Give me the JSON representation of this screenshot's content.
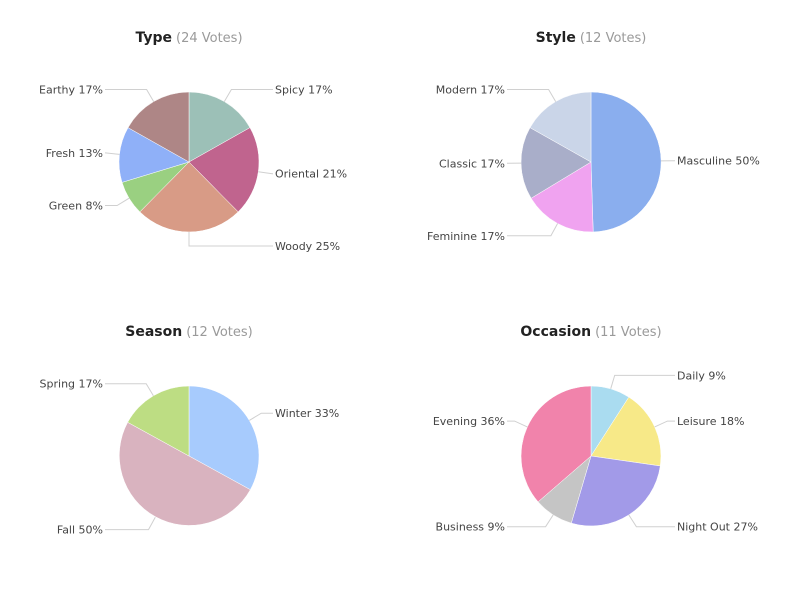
{
  "chart_data": [
    {
      "type": "pie",
      "title": "Type",
      "subtitle": "(24 Votes)",
      "slices": [
        {
          "label": "Spicy 17%",
          "value": 17,
          "color": "#9cc0b7"
        },
        {
          "label": "Oriental 21%",
          "value": 21,
          "color": "#c0648e"
        },
        {
          "label": "Woody 25%",
          "value": 25,
          "color": "#d89b86"
        },
        {
          "label": "Green 8%",
          "value": 8,
          "color": "#9ad081"
        },
        {
          "label": "Fresh 13%",
          "value": 13,
          "color": "#8fb0f8"
        },
        {
          "label": "Earthy 17%",
          "value": 17,
          "color": "#ae8686"
        }
      ]
    },
    {
      "type": "pie",
      "title": "Style",
      "subtitle": "(12 Votes)",
      "slices": [
        {
          "label": "Masculine 50%",
          "value": 50,
          "color": "#8aaeee"
        },
        {
          "label": "Feminine 17%",
          "value": 17,
          "color": "#f0a3f0"
        },
        {
          "label": "Classic 17%",
          "value": 17,
          "color": "#a9aec9"
        },
        {
          "label": "Modern 17%",
          "value": 17,
          "color": "#cad5e8"
        }
      ]
    },
    {
      "type": "pie",
      "title": "Season",
      "subtitle": "(12 Votes)",
      "slices": [
        {
          "label": "Winter 33%",
          "value": 33,
          "color": "#a7cbfd"
        },
        {
          "label": "Fall 50%",
          "value": 50,
          "color": "#d9b3bf"
        },
        {
          "label": "Spring 17%",
          "value": 17,
          "color": "#bddd83"
        }
      ]
    },
    {
      "type": "pie",
      "title": "Occasion",
      "subtitle": "(11 Votes)",
      "slices": [
        {
          "label": "Daily 9%",
          "value": 9,
          "color": "#aadcf0"
        },
        {
          "label": "Leisure 18%",
          "value": 18,
          "color": "#f7e988"
        },
        {
          "label": "Night Out 27%",
          "value": 27,
          "color": "#a29ae8"
        },
        {
          "label": "Business 9%",
          "value": 9,
          "color": "#c5c5c5"
        },
        {
          "label": "Evening 36%",
          "value": 36,
          "color": "#f183ab"
        }
      ]
    }
  ]
}
